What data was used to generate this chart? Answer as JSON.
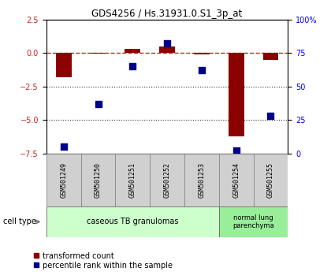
{
  "title": "GDS4256 / Hs.31931.0.S1_3p_at",
  "samples": [
    "GSM501249",
    "GSM501250",
    "GSM501251",
    "GSM501252",
    "GSM501253",
    "GSM501254",
    "GSM501255"
  ],
  "transformed_count": [
    -1.8,
    -0.05,
    0.3,
    0.5,
    -0.1,
    -6.2,
    -0.5
  ],
  "percentile_rank": [
    5,
    37,
    65,
    82,
    62,
    2,
    28
  ],
  "ylim_left": [
    -7.5,
    2.5
  ],
  "ylim_right": [
    0,
    100
  ],
  "yticks_left": [
    2.5,
    0,
    -2.5,
    -5,
    -7.5
  ],
  "yticks_right": [
    0,
    25,
    50,
    75,
    100
  ],
  "ytick_labels_right": [
    "0",
    "25",
    "50",
    "75",
    "100%"
  ],
  "bar_color": "#8B0000",
  "dot_color": "#00008B",
  "hline_color": "#cc2222",
  "dotted_line_color": "#333333",
  "group1_label": "caseous TB granulomas",
  "group2_label": "normal lung\nparenchyma",
  "cell_type_label": "cell type",
  "legend1": "transformed count",
  "legend2": "percentile rank within the sample",
  "bar_width": 0.45,
  "dot_size": 40,
  "group1_color": "#ccffcc",
  "group2_color": "#99ee99",
  "box_color": "#d0d0d0"
}
